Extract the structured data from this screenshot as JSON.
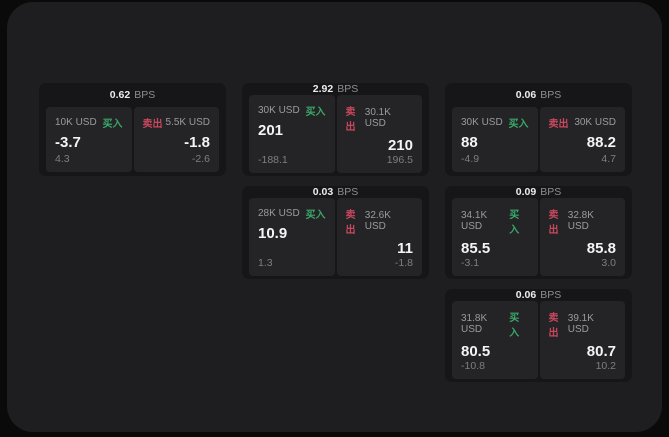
{
  "labels": {
    "bps_unit": "BPS",
    "buy": "买入",
    "sell": "卖出"
  },
  "colors": {
    "background": "#0a0a0a",
    "surface": "#1e1e20",
    "card": "#161618",
    "panel": "#242427",
    "buy_green": "#3aa869",
    "sell_red": "#c8475d"
  },
  "cards": [
    {
      "bps": "0.62",
      "buy": {
        "amount": "10K USD",
        "price": "-3.7",
        "change": "4.3"
      },
      "sell": {
        "amount": "5.5K USD",
        "price": "-1.8",
        "change": "-2.6"
      }
    },
    {
      "bps": "2.92",
      "buy": {
        "amount": "30K USD",
        "price": "201",
        "change": "-188.1"
      },
      "sell": {
        "amount": "30.1K USD",
        "price": "210",
        "change": "196.5"
      }
    },
    {
      "bps": "0.06",
      "buy": {
        "amount": "30K USD",
        "price": "88",
        "change": "-4.9"
      },
      "sell": {
        "amount": "30K USD",
        "price": "88.2",
        "change": "4.7"
      }
    },
    {
      "bps": "0.03",
      "buy": {
        "amount": "28K USD",
        "price": "10.9",
        "change": "1.3"
      },
      "sell": {
        "amount": "32.6K USD",
        "price": "11",
        "change": "-1.8"
      }
    },
    {
      "bps": "0.09",
      "buy": {
        "amount": "34.1K USD",
        "price": "85.5",
        "change": "-3.1"
      },
      "sell": {
        "amount": "32.8K USD",
        "price": "85.8",
        "change": "3.0"
      }
    },
    {
      "bps": "0.06",
      "buy": {
        "amount": "31.8K USD",
        "price": "80.5",
        "change": "-10.8"
      },
      "sell": {
        "amount": "39.1K USD",
        "price": "80.7",
        "change": "10.2"
      }
    }
  ]
}
